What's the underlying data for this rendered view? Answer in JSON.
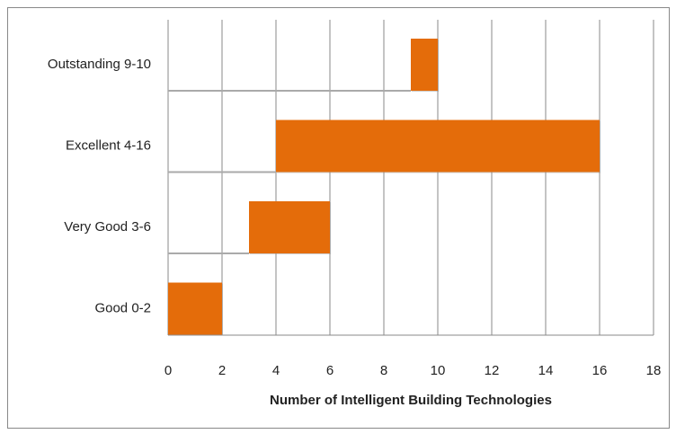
{
  "chart_data": {
    "type": "range_bar",
    "categories": [
      "Good 0-2",
      "Very Good 3-6",
      "Excellent 4-16",
      "Outstanding 9-10"
    ],
    "starts": [
      0,
      3,
      4,
      9
    ],
    "ends": [
      2,
      6,
      16,
      10
    ],
    "color": "#e46c0a",
    "xlabel": "Number of Intelligent Building Technologies",
    "xlim": [
      0,
      18
    ],
    "xticks": [
      0,
      2,
      4,
      6,
      8,
      10,
      12,
      14,
      16,
      18
    ],
    "grid": true
  }
}
